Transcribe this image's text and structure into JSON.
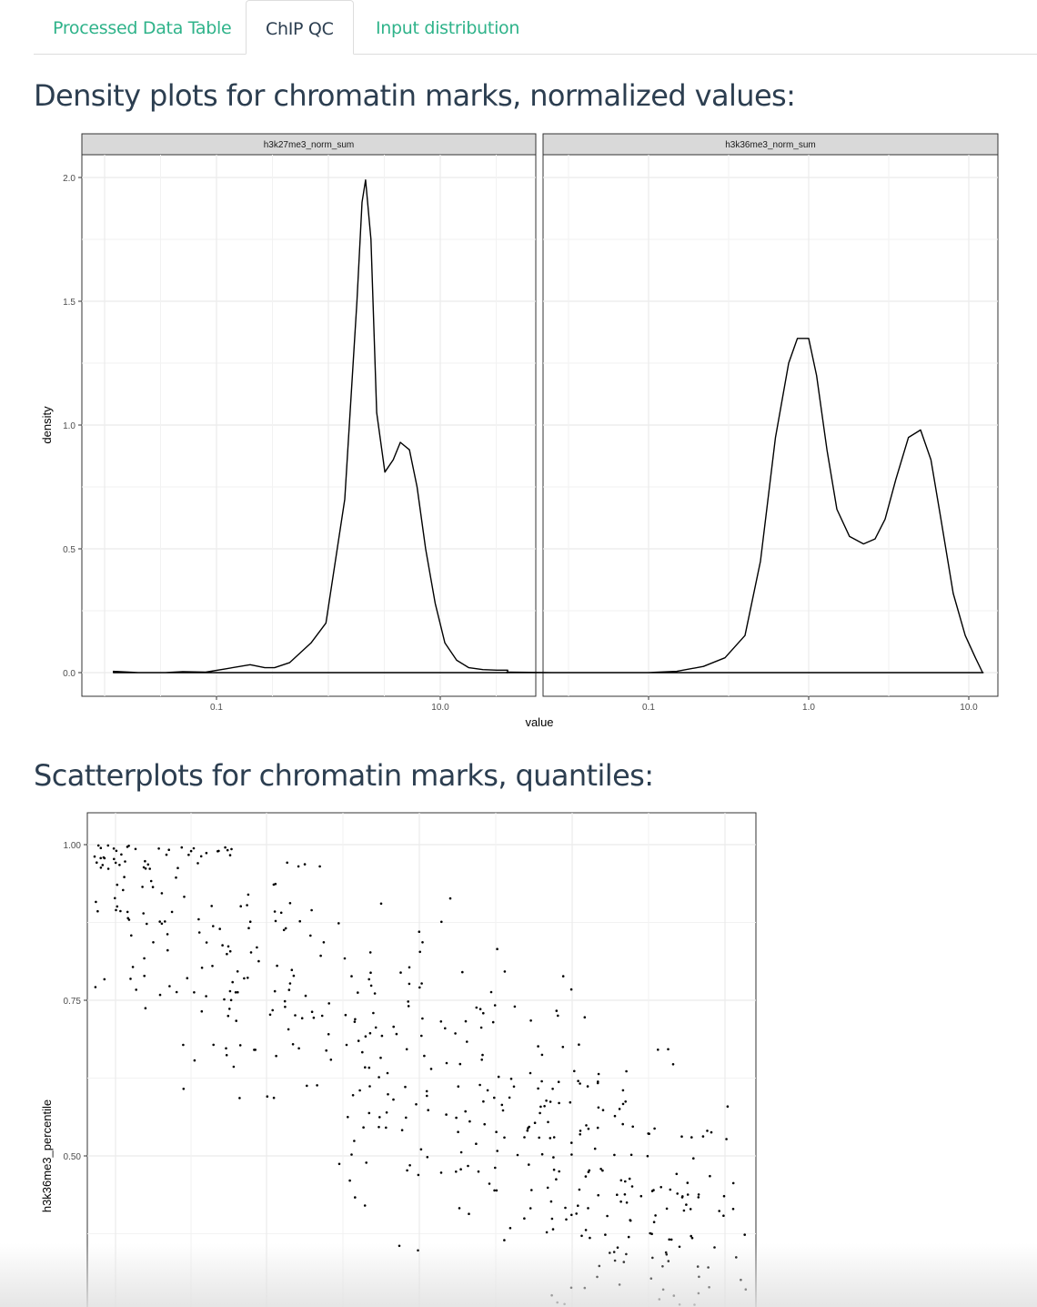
{
  "tabs": [
    {
      "label": "Processed Data Table",
      "active": false
    },
    {
      "label": "ChIP QC",
      "active": true
    },
    {
      "label": "Input distribution",
      "active": false
    }
  ],
  "colors": {
    "accent": "#2fb38a",
    "heading": "#2c3e50",
    "strip": "#d9d9d9",
    "grid": "#ebebeb"
  },
  "sections": {
    "density_heading": "Density plots for chromatin marks, normalized values:",
    "scatter_heading": "Scatterplots for chromatin marks, quantiles:"
  },
  "chart_data": [
    {
      "type": "line",
      "title": "",
      "xlabel": "value",
      "ylabel": "density",
      "x_scale": "log10",
      "grid": true,
      "y_ticks": [
        "0.0",
        "0.5",
        "1.0",
        "1.5",
        "2.0"
      ],
      "ylim": [
        0,
        2.0
      ],
      "facets": [
        {
          "strip": "h3k27me3_norm_sum",
          "x_ticks": [
            "0.1",
            "10.0"
          ],
          "xlim": [
            0.01,
            60
          ],
          "x": [
            0.012,
            0.02,
            0.035,
            0.05,
            0.08,
            0.12,
            0.2,
            0.27,
            0.33,
            0.45,
            0.7,
            0.95,
            1.4,
            1.8,
            2.0,
            2.15,
            2.4,
            2.7,
            3.2,
            3.8,
            4.4,
            5.3,
            6.2,
            7.4,
            9.0,
            11.0,
            14,
            18,
            24,
            32,
            40
          ],
          "y": [
            0.005,
            0.0,
            0.0,
            0.004,
            0.002,
            0.015,
            0.032,
            0.02,
            0.02,
            0.04,
            0.12,
            0.2,
            0.7,
            1.5,
            1.9,
            1.99,
            1.75,
            1.05,
            0.81,
            0.86,
            0.93,
            0.9,
            0.75,
            0.5,
            0.28,
            0.12,
            0.05,
            0.02,
            0.012,
            0.01,
            0.01
          ]
        },
        {
          "strip": "h3k36me3_norm_sum",
          "x_ticks": [
            "0.1",
            "1.0",
            "10.0"
          ],
          "xlim": [
            0.01,
            16
          ],
          "x": [
            0.013,
            0.025,
            0.05,
            0.1,
            0.15,
            0.22,
            0.3,
            0.4,
            0.5,
            0.62,
            0.75,
            0.85,
            1.0,
            1.12,
            1.3,
            1.5,
            1.8,
            2.2,
            2.6,
            3.0,
            3.5,
            4.2,
            5.0,
            5.8,
            6.7,
            8.0,
            9.5,
            11.0,
            12.2,
            12.3
          ],
          "y": [
            0.002,
            0.0,
            0.0,
            0.0,
            0.005,
            0.025,
            0.06,
            0.15,
            0.45,
            0.95,
            1.25,
            1.35,
            1.35,
            1.2,
            0.9,
            0.66,
            0.55,
            0.52,
            0.54,
            0.62,
            0.78,
            0.95,
            0.98,
            0.86,
            0.62,
            0.32,
            0.15,
            0.06,
            0.0,
            0.0
          ]
        }
      ]
    },
    {
      "type": "scatter",
      "title": "",
      "xlabel": "",
      "ylabel": "h3k36me3_percentile",
      "y_ticks": [
        "0.50",
        "0.75",
        "1.00"
      ],
      "ylim_visible": [
        0.2,
        1.05
      ],
      "grid": true,
      "n_points_visible": 520
    }
  ]
}
